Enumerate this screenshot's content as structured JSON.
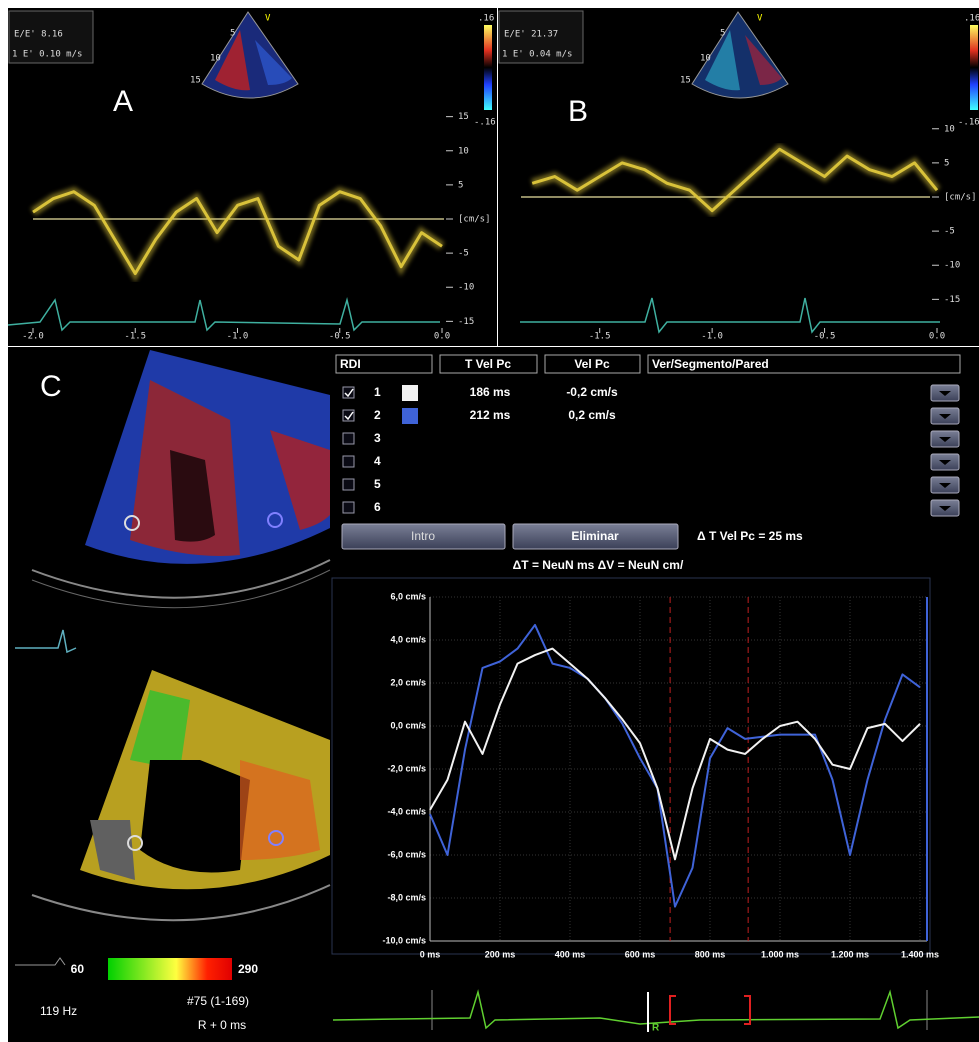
{
  "panel_labels": [
    "A",
    "B",
    "C"
  ],
  "panel_a": {
    "ee": "E/E'  8.16",
    "e": "1  E' 0.10 m/s",
    "scale_top": ".16",
    "scale_bottom": "-.16",
    "view": "V",
    "depths": [
      "5",
      "10",
      "15"
    ]
  },
  "panel_b": {
    "ee": "E/E'  21.37",
    "e": "1  E' 0.04 m/s",
    "scale_top": ".16",
    "scale_bottom": "-.16",
    "view": "V",
    "depths": [
      "5",
      "10",
      "15"
    ]
  },
  "table": {
    "headers": [
      "RDI",
      "T Vel Pc",
      "Vel Pc",
      "Ver/Segmento/Pared"
    ],
    "rows": [
      {
        "checked": true,
        "id": "1",
        "color": "#f2f2f2",
        "t": "186 ms",
        "v": "-0,2 cm/s"
      },
      {
        "checked": true,
        "id": "2",
        "color": "#3f63d8",
        "t": "212 ms",
        "v": "0,2 cm/s"
      },
      {
        "checked": false,
        "id": "3"
      },
      {
        "checked": false,
        "id": "4"
      },
      {
        "checked": false,
        "id": "5"
      },
      {
        "checked": false,
        "id": "6"
      }
    ],
    "buttons": [
      "Intro",
      "Eliminar"
    ],
    "delta_t": "Δ T Vel Pc = 25 ms",
    "deltas": "ΔT = NeuN ms   ΔV = NeuN cm/"
  },
  "colorbar": {
    "min": "60",
    "max": "290"
  },
  "footer": {
    "rate": "119 Hz",
    "frame": "#75 (1-169)",
    "offset": "R + 0 ms",
    "r_label": "R"
  },
  "chart_data": [
    {
      "type": "doppler",
      "color": "#d9c23a",
      "x": [
        -2.0,
        -1.9,
        -1.8,
        -1.7,
        -1.6,
        -1.5,
        -1.4,
        -1.3,
        -1.2,
        -1.1,
        -1.0,
        -0.9,
        -0.8,
        -0.7,
        -0.6,
        -0.5,
        -0.4,
        -0.3,
        -0.2,
        -0.1,
        0.0
      ],
      "values": [
        1,
        3,
        4,
        2,
        -3,
        -8,
        -3,
        1,
        3,
        -2,
        2,
        3,
        -4,
        -6,
        2,
        4,
        3,
        -1,
        -7,
        -2,
        -4
      ],
      "xlim": [
        -2.0,
        0.0
      ],
      "ylim": [
        -17,
        17
      ],
      "xticks": [
        {
          "value": -2,
          "label": "-2.0"
        },
        -1.5,
        {
          "value": -1,
          "label": "-1.0"
        },
        -0.5,
        {
          "value": 0,
          "label": "0.0"
        }
      ],
      "yticks": [
        15,
        10,
        5,
        {
          "value": 0,
          "label": "[cm/s]"
        },
        -5,
        -10,
        -15
      ]
    },
    {
      "type": "doppler",
      "color": "#d9c23a",
      "x": [
        -1.8,
        -1.7,
        -1.6,
        -1.5,
        -1.4,
        -1.3,
        -1.2,
        -1.1,
        -1.0,
        -0.9,
        -0.8,
        -0.7,
        -0.6,
        -0.5,
        -0.4,
        -0.3,
        -0.2,
        -0.1,
        0.0
      ],
      "values": [
        2,
        3,
        1,
        3,
        5,
        4,
        2,
        1,
        -2,
        1,
        4,
        7,
        5,
        3,
        6,
        4,
        3,
        5,
        1
      ],
      "xlim": [
        -1.85,
        0.0
      ],
      "ylim": [
        -17,
        17
      ],
      "xticks": [
        -1.5,
        {
          "value": -1,
          "label": "-1.0"
        },
        -0.5,
        {
          "value": 0,
          "label": "0.0"
        }
      ],
      "yticks": [
        10,
        5,
        {
          "value": 0,
          "label": "[cm/s]"
        },
        -5,
        -10,
        -15
      ]
    },
    {
      "type": "line",
      "grid": true,
      "x": [
        0,
        50,
        100,
        150,
        200,
        250,
        300,
        350,
        400,
        450,
        500,
        550,
        600,
        650,
        700,
        750,
        800,
        850,
        900,
        950,
        1000,
        1050,
        1100,
        1150,
        1200,
        1250,
        1300,
        1350,
        1400
      ],
      "series": [
        {
          "color": "#f2f2f2",
          "values": [
            -3.9,
            -2.5,
            0.2,
            -1.3,
            1.0,
            2.9,
            3.3,
            3.6,
            2.9,
            2.2,
            1.3,
            0.3,
            -0.8,
            -2.9,
            -6.2,
            -2.9,
            -0.6,
            -1.1,
            -1.3,
            -0.6,
            0.0,
            0.2,
            -0.6,
            -1.8,
            -2.0,
            -0.1,
            0.1,
            -0.7,
            0.1
          ]
        },
        {
          "color": "#3f63d8",
          "values": [
            -4.1,
            -6.0,
            -1.1,
            2.7,
            3.0,
            3.6,
            4.7,
            2.9,
            2.7,
            2.2,
            1.3,
            0.1,
            -1.5,
            -2.9,
            -8.4,
            -6.6,
            -1.5,
            -0.1,
            -0.6,
            -0.5,
            -0.4,
            -0.4,
            -0.4,
            -2.5,
            -6.0,
            -2.5,
            0.3,
            2.4,
            1.8
          ]
        }
      ],
      "vlines": [
        686,
        909
      ],
      "xlim": [
        0,
        1420
      ],
      "ylim": [
        -10,
        6
      ],
      "xticks": [
        {
          "value": 0,
          "label": "0 ms"
        },
        {
          "value": 200,
          "label": "200 ms"
        },
        {
          "value": 400,
          "label": "400 ms"
        },
        {
          "value": 600,
          "label": "600 ms"
        },
        {
          "value": 800,
          "label": "800 ms"
        },
        {
          "value": 1000,
          "label": "1.000 ms"
        },
        {
          "value": 1200,
          "label": "1.200 ms"
        },
        {
          "value": 1400,
          "label": "1.400 ms"
        }
      ],
      "yticks": [
        {
          "value": 6,
          "label": "6,0 cm/s"
        },
        {
          "value": 4,
          "label": "4,0 cm/s"
        },
        {
          "value": 2,
          "label": "2,0 cm/s"
        },
        {
          "value": 0,
          "label": "0,0 cm/s"
        },
        {
          "value": -2,
          "label": "-2,0 cm/s"
        },
        {
          "value": -4,
          "label": "-4,0 cm/s"
        },
        {
          "value": -6,
          "label": "-6,0 cm/s"
        },
        {
          "value": -8,
          "label": "-8,0 cm/s"
        },
        {
          "value": -10,
          "label": "-10,0 cm/s"
        }
      ]
    }
  ]
}
